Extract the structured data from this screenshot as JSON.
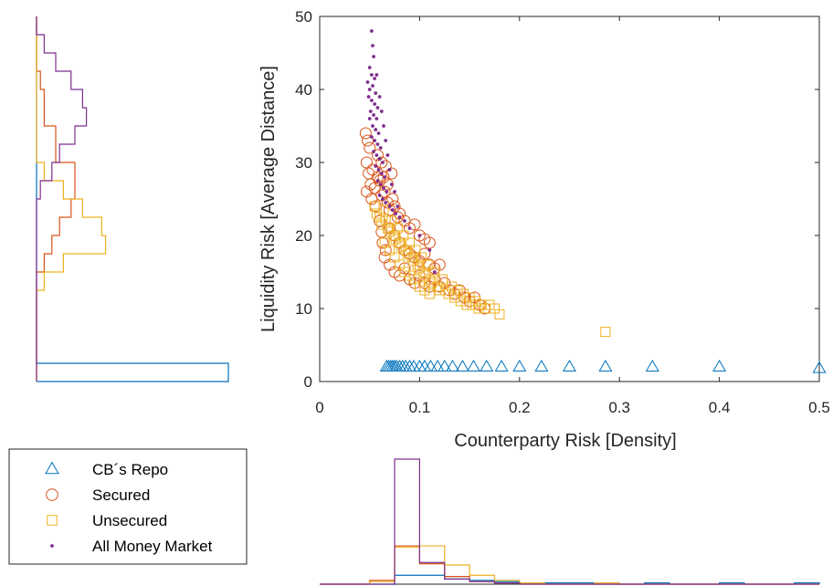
{
  "chart_data": {
    "type": "scatter",
    "xlabel": "Counterparty Risk [Density]",
    "ylabel": "Liquidity Risk [Average Distance]",
    "xlim": [
      0,
      0.5
    ],
    "ylim": [
      0,
      50
    ],
    "xticks": [
      0,
      0.1,
      0.2,
      0.3,
      0.4,
      0.5
    ],
    "xtick_labels": [
      "0",
      "0.1",
      "0.2",
      "0.3",
      "0.4",
      "0.5"
    ],
    "yticks": [
      0,
      10,
      20,
      30,
      40,
      50
    ],
    "ytick_labels": [
      "0",
      "10",
      "20",
      "30",
      "40",
      "50"
    ],
    "grid": false,
    "legend_position": "bottom-left, outside plot",
    "series": [
      {
        "name": "CB´s Repo",
        "marker": "triangle",
        "color": "#0072BD",
        "points": [
          [
            0.067,
            2.0
          ],
          [
            0.069,
            2.0
          ],
          [
            0.071,
            2.0
          ],
          [
            0.073,
            2.0
          ],
          [
            0.075,
            2.0
          ],
          [
            0.077,
            2.0
          ],
          [
            0.08,
            2.0
          ],
          [
            0.083,
            2.0
          ],
          [
            0.086,
            2.0
          ],
          [
            0.09,
            2.0
          ],
          [
            0.094,
            2.0
          ],
          [
            0.1,
            2.0
          ],
          [
            0.105,
            2.0
          ],
          [
            0.111,
            2.0
          ],
          [
            0.118,
            2.0
          ],
          [
            0.125,
            2.0
          ],
          [
            0.133,
            2.0
          ],
          [
            0.143,
            2.0
          ],
          [
            0.154,
            2.0
          ],
          [
            0.167,
            2.0
          ],
          [
            0.182,
            2.0
          ],
          [
            0.2,
            2.0
          ],
          [
            0.222,
            2.0
          ],
          [
            0.25,
            2.0
          ],
          [
            0.286,
            2.0
          ],
          [
            0.333,
            2.0
          ],
          [
            0.4,
            2.0
          ],
          [
            0.5,
            1.8
          ]
        ]
      },
      {
        "name": "Secured",
        "marker": "circle",
        "color": "#D95319",
        "points": [
          [
            0.046,
            34.0
          ],
          [
            0.048,
            33.0
          ],
          [
            0.05,
            32.0
          ],
          [
            0.047,
            30.0
          ],
          [
            0.049,
            28.5
          ],
          [
            0.051,
            27.0
          ],
          [
            0.053,
            29.0
          ],
          [
            0.047,
            26.0
          ],
          [
            0.052,
            25.0
          ],
          [
            0.055,
            26.5
          ],
          [
            0.058,
            28.0
          ],
          [
            0.06,
            27.5
          ],
          [
            0.056,
            24.0
          ],
          [
            0.062,
            25.5
          ],
          [
            0.065,
            26.0
          ],
          [
            0.068,
            24.5
          ],
          [
            0.07,
            23.5
          ],
          [
            0.073,
            25.0
          ],
          [
            0.075,
            24.0
          ],
          [
            0.078,
            22.5
          ],
          [
            0.08,
            23.0
          ],
          [
            0.085,
            22.0
          ],
          [
            0.09,
            21.0
          ],
          [
            0.095,
            21.5
          ],
          [
            0.1,
            20.0
          ],
          [
            0.105,
            19.5
          ],
          [
            0.11,
            19.0
          ],
          [
            0.07,
            21.0
          ],
          [
            0.075,
            20.0
          ],
          [
            0.08,
            19.0
          ],
          [
            0.085,
            18.0
          ],
          [
            0.09,
            17.5
          ],
          [
            0.095,
            17.0
          ],
          [
            0.1,
            16.5
          ],
          [
            0.105,
            17.5
          ],
          [
            0.11,
            16.0
          ],
          [
            0.115,
            15.5
          ],
          [
            0.12,
            16.0
          ],
          [
            0.065,
            17.0
          ],
          [
            0.07,
            16.0
          ],
          [
            0.075,
            15.0
          ],
          [
            0.08,
            14.5
          ],
          [
            0.085,
            15.5
          ],
          [
            0.09,
            14.0
          ],
          [
            0.095,
            13.5
          ],
          [
            0.1,
            14.5
          ],
          [
            0.105,
            13.5
          ],
          [
            0.11,
            13.0
          ],
          [
            0.115,
            14.0
          ],
          [
            0.12,
            13.0
          ],
          [
            0.125,
            13.5
          ],
          [
            0.13,
            12.5
          ],
          [
            0.135,
            12.0
          ],
          [
            0.14,
            12.5
          ],
          [
            0.145,
            11.5
          ],
          [
            0.15,
            11.0
          ],
          [
            0.155,
            11.5
          ],
          [
            0.16,
            10.5
          ],
          [
            0.165,
            10.0
          ],
          [
            0.058,
            31.0
          ],
          [
            0.062,
            30.0
          ],
          [
            0.064,
            28.0
          ],
          [
            0.066,
            29.5
          ],
          [
            0.068,
            27.0
          ],
          [
            0.072,
            28.5
          ],
          [
            0.06,
            22.0
          ],
          [
            0.062,
            20.5
          ],
          [
            0.063,
            19.0
          ],
          [
            0.066,
            18.0
          ]
        ]
      },
      {
        "name": "Unsecured",
        "marker": "square",
        "color": "#EDB120",
        "points": [
          [
            0.055,
            24.0
          ],
          [
            0.057,
            23.0
          ],
          [
            0.06,
            22.5
          ],
          [
            0.062,
            21.5
          ],
          [
            0.064,
            23.5
          ],
          [
            0.066,
            22.0
          ],
          [
            0.068,
            21.0
          ],
          [
            0.07,
            20.5
          ],
          [
            0.072,
            22.0
          ],
          [
            0.074,
            20.0
          ],
          [
            0.076,
            19.5
          ],
          [
            0.078,
            21.0
          ],
          [
            0.08,
            19.0
          ],
          [
            0.082,
            18.5
          ],
          [
            0.084,
            20.0
          ],
          [
            0.086,
            18.0
          ],
          [
            0.088,
            17.5
          ],
          [
            0.09,
            19.0
          ],
          [
            0.092,
            17.0
          ],
          [
            0.094,
            16.5
          ],
          [
            0.096,
            18.0
          ],
          [
            0.098,
            16.0
          ],
          [
            0.1,
            15.5
          ],
          [
            0.102,
            17.0
          ],
          [
            0.104,
            15.0
          ],
          [
            0.106,
            14.5
          ],
          [
            0.108,
            16.0
          ],
          [
            0.11,
            14.0
          ],
          [
            0.112,
            13.5
          ],
          [
            0.115,
            15.0
          ],
          [
            0.118,
            13.0
          ],
          [
            0.12,
            12.5
          ],
          [
            0.123,
            14.0
          ],
          [
            0.126,
            12.5
          ],
          [
            0.129,
            12.0
          ],
          [
            0.132,
            13.0
          ],
          [
            0.135,
            11.5
          ],
          [
            0.138,
            12.5
          ],
          [
            0.141,
            11.0
          ],
          [
            0.144,
            12.0
          ],
          [
            0.147,
            10.5
          ],
          [
            0.15,
            11.5
          ],
          [
            0.153,
            10.5
          ],
          [
            0.156,
            11.0
          ],
          [
            0.159,
            10.0
          ],
          [
            0.162,
            10.5
          ],
          [
            0.166,
            10.0
          ],
          [
            0.17,
            10.5
          ],
          [
            0.175,
            10.0
          ],
          [
            0.18,
            9.2
          ],
          [
            0.286,
            6.8
          ],
          [
            0.065,
            19.0
          ],
          [
            0.07,
            18.0
          ],
          [
            0.075,
            17.0
          ],
          [
            0.08,
            16.0
          ],
          [
            0.085,
            15.0
          ],
          [
            0.09,
            14.5
          ],
          [
            0.095,
            14.0
          ],
          [
            0.1,
            13.0
          ],
          [
            0.105,
            12.5
          ],
          [
            0.11,
            12.0
          ]
        ]
      },
      {
        "name": "All Money Market",
        "marker": "dot",
        "color": "#7E2F8E",
        "points": [
          [
            0.052,
            48.0
          ],
          [
            0.053,
            46.0
          ],
          [
            0.054,
            44.5
          ],
          [
            0.05,
            43.0
          ],
          [
            0.052,
            42.0
          ],
          [
            0.055,
            41.5
          ],
          [
            0.048,
            41.0
          ],
          [
            0.05,
            40.0
          ],
          [
            0.053,
            40.5
          ],
          [
            0.056,
            39.5
          ],
          [
            0.049,
            39.0
          ],
          [
            0.052,
            38.5
          ],
          [
            0.055,
            38.0
          ],
          [
            0.058,
            37.5
          ],
          [
            0.051,
            37.0
          ],
          [
            0.054,
            36.5
          ],
          [
            0.057,
            36.0
          ],
          [
            0.05,
            36.0
          ],
          [
            0.053,
            35.0
          ],
          [
            0.056,
            34.5
          ],
          [
            0.059,
            34.0
          ],
          [
            0.052,
            33.5
          ],
          [
            0.055,
            33.0
          ],
          [
            0.058,
            32.5
          ],
          [
            0.061,
            32.0
          ],
          [
            0.054,
            31.5
          ],
          [
            0.057,
            31.0
          ],
          [
            0.06,
            30.5
          ],
          [
            0.063,
            30.0
          ],
          [
            0.056,
            29.5
          ],
          [
            0.059,
            29.0
          ],
          [
            0.062,
            28.5
          ],
          [
            0.065,
            28.0
          ],
          [
            0.058,
            27.5
          ],
          [
            0.061,
            27.0
          ],
          [
            0.064,
            26.5
          ],
          [
            0.067,
            26.0
          ],
          [
            0.06,
            25.5
          ],
          [
            0.063,
            25.0
          ],
          [
            0.066,
            24.5
          ],
          [
            0.07,
            24.0
          ],
          [
            0.073,
            23.5
          ],
          [
            0.076,
            23.0
          ],
          [
            0.08,
            22.5
          ],
          [
            0.085,
            22.0
          ],
          [
            0.09,
            21.0
          ],
          [
            0.1,
            20.0
          ],
          [
            0.11,
            18.0
          ],
          [
            0.115,
            15.0
          ],
          [
            0.057,
            42.0
          ],
          [
            0.06,
            39.0
          ],
          [
            0.062,
            37.0
          ],
          [
            0.064,
            35.0
          ],
          [
            0.066,
            33.0
          ],
          [
            0.068,
            31.0
          ],
          [
            0.07,
            29.0
          ],
          [
            0.072,
            27.0
          ],
          [
            0.075,
            26.0
          ],
          [
            0.078,
            24.0
          ]
        ]
      }
    ],
    "marginal_histograms": {
      "x_axis_bin_edges": [
        0,
        0.025,
        0.05,
        0.075,
        0.1,
        0.125,
        0.15,
        0.175,
        0.2,
        0.225,
        0.25,
        0.275,
        0.3,
        0.325,
        0.35,
        0.375,
        0.4,
        0.425,
        0.45,
        0.475,
        0.5
      ],
      "x_axis_counts": [
        {
          "name": "CB´s Repo",
          "values": [
            0,
            0,
            0,
            7,
            7,
            4,
            3,
            2,
            1,
            1,
            1,
            0,
            0,
            1,
            0,
            0,
            1,
            0,
            0,
            1
          ]
        },
        {
          "name": "Secured",
          "values": [
            0,
            0,
            3,
            30,
            16,
            6,
            2,
            1,
            0,
            0,
            0,
            0,
            0,
            0,
            0,
            0,
            0,
            0,
            0,
            0
          ]
        },
        {
          "name": "Unsecured",
          "values": [
            0,
            0,
            2,
            29,
            30,
            15,
            7,
            3,
            1,
            0,
            0,
            1,
            0,
            0,
            0,
            0,
            0,
            0,
            0,
            0
          ]
        },
        {
          "name": "All Money Market",
          "values": [
            0,
            0,
            0,
            98,
            17,
            4,
            2,
            1,
            0,
            0,
            0,
            0,
            0,
            0,
            0,
            0,
            0,
            0,
            0,
            0
          ]
        }
      ],
      "y_axis_bin_edges": [
        0,
        2.5,
        5,
        7.5,
        10,
        12.5,
        15,
        17.5,
        20,
        22.5,
        25,
        27.5,
        30,
        32.5,
        35,
        37.5,
        40,
        42.5,
        45,
        47.5,
        50
      ],
      "y_axis_counts": [
        {
          "name": "CB´s Repo",
          "values": [
            100,
            0,
            0,
            0,
            0,
            0,
            0,
            0,
            0,
            0,
            0,
            0,
            0,
            0,
            0,
            0,
            0,
            0,
            0,
            0
          ]
        },
        {
          "name": "Secured",
          "values": [
            0,
            0,
            0,
            0,
            0,
            0,
            4,
            8,
            12,
            18,
            20,
            20,
            10,
            10,
            4,
            4,
            2,
            0,
            0,
            0
          ]
        },
        {
          "name": "Unsecured",
          "values": [
            0,
            0,
            0,
            0,
            0,
            4,
            14,
            36,
            34,
            24,
            14,
            4,
            0,
            0,
            0,
            0,
            0,
            0,
            0,
            0
          ]
        },
        {
          "name": "All Money Market",
          "values": [
            0,
            0,
            0,
            0,
            0,
            0,
            0,
            0,
            0,
            0,
            2,
            8,
            12,
            20,
            26,
            24,
            18,
            10,
            4,
            0
          ]
        }
      ]
    }
  }
}
